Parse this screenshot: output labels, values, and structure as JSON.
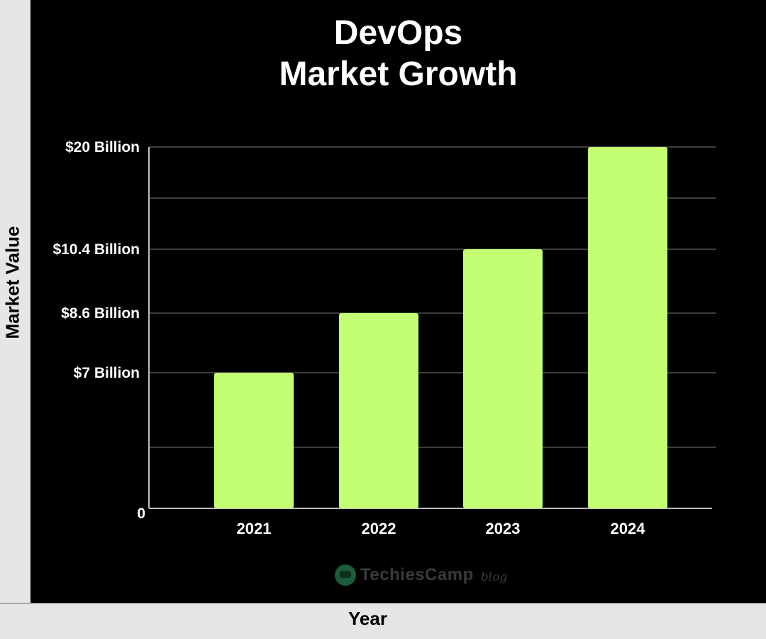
{
  "colors": {
    "bar": "#c4ff73",
    "grid": "#3c3c3c",
    "axis": "#bdbdbd",
    "label": "#ffffff",
    "background": "#000000"
  },
  "watermark": {
    "logo_icon": "techiescamp-logo-icon",
    "name": "TechiesCamp",
    "suffix": "blog"
  },
  "chart_data": {
    "type": "bar",
    "title": [
      "DevOps",
      "Market Growth"
    ],
    "xlabel": "Year",
    "ylabel": "Market Value",
    "categories": [
      "2021",
      "2022",
      "2023",
      "2024"
    ],
    "values": [
      7,
      8.6,
      10.4,
      20
    ],
    "value_unit": "Billion USD",
    "y_ticks": [
      {
        "value": 0,
        "label": "0"
      },
      {
        "value": 7,
        "label": "$7 Billion"
      },
      {
        "value": 8.6,
        "label": "$8.6 Billion"
      },
      {
        "value": 10.4,
        "label": "$10.4 Billion"
      },
      {
        "value": 20,
        "label": "$20 Billion"
      }
    ],
    "ylim": [
      0,
      20
    ],
    "grid": true,
    "legend": "none"
  }
}
